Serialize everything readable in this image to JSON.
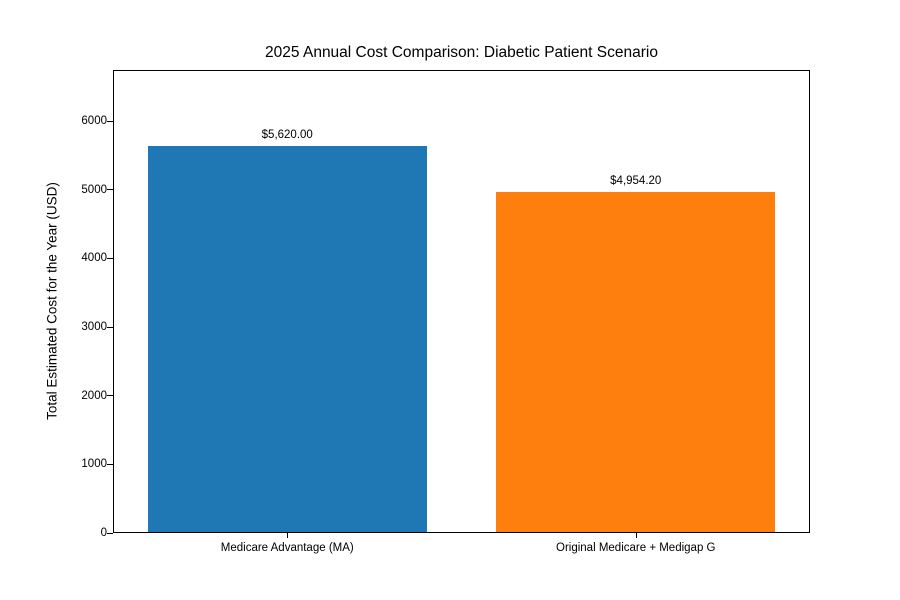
{
  "chart_data": {
    "type": "bar",
    "title": "2025 Annual Cost Comparison: Diabetic Patient Scenario",
    "categories": [
      "Medicare Advantage (MA)",
      "Original Medicare + Medigap G"
    ],
    "values": [
      5620.0,
      4954.2
    ],
    "value_labels": [
      "$5,620.00",
      "$4,954.20"
    ],
    "bar_colors": [
      "#1f77b4",
      "#ff7f0e"
    ],
    "xlabel": "",
    "ylabel": "Total Estimated Cost for the Year (USD)",
    "ylim": [
      0,
      6744
    ],
    "yticks": [
      0,
      1000,
      2000,
      3000,
      4000,
      5000,
      6000
    ],
    "grid": false,
    "legend_position": "none",
    "background_color": "#ffffff",
    "axis_color": "#000000",
    "text_color": "#000000"
  }
}
